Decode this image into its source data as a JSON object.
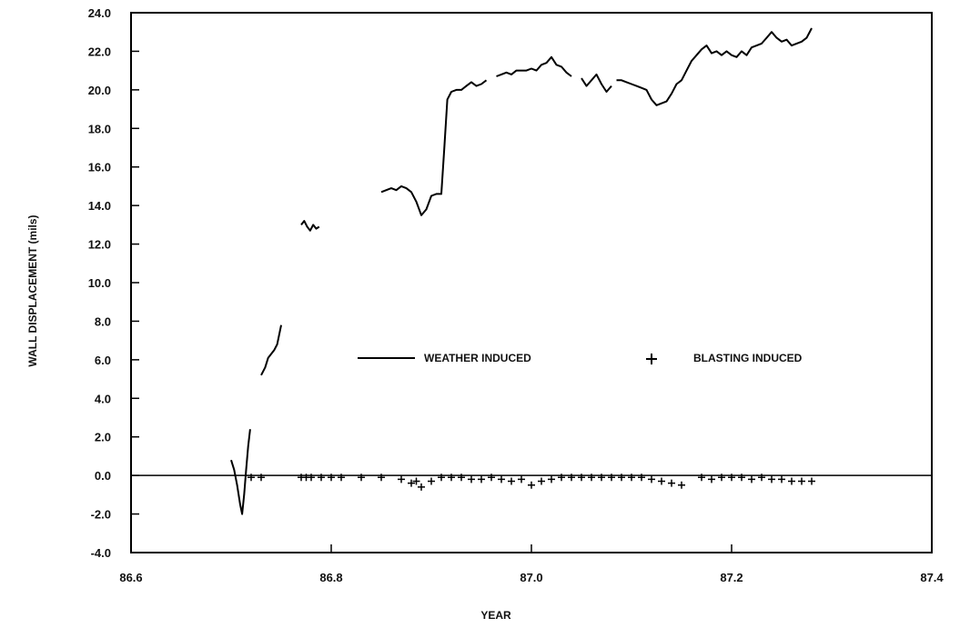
{
  "chart_data": {
    "type": "line",
    "title": "",
    "xlabel": "YEAR",
    "ylabel": "WALL DISPLACEMENT (mils)",
    "xlim": [
      86.6,
      87.4
    ],
    "ylim": [
      -4.0,
      24.0
    ],
    "x_ticks": [
      "86.6",
      "86.8",
      "87.0",
      "87.2",
      "87.4"
    ],
    "y_ticks": [
      "-4.0",
      "-2.0",
      "0.0",
      "2.0",
      "4.0",
      "6.0",
      "8.0",
      "10.0",
      "12.0",
      "14.0",
      "16.0",
      "18.0",
      "20.0",
      "22.0",
      "24.0"
    ],
    "zero_line": 0.0,
    "grid": false,
    "legend_position": "center",
    "series": [
      {
        "name": "WEATHER INDUCED",
        "marker": "line",
        "segments": [
          [
            [
              86.7,
              0.8
            ],
            [
              86.703,
              0.3
            ],
            [
              86.706,
              -0.5
            ],
            [
              86.709,
              -1.5
            ],
            [
              86.711,
              -2.0
            ],
            [
              86.713,
              -1.0
            ],
            [
              86.715,
              0.3
            ],
            [
              86.717,
              1.5
            ],
            [
              86.719,
              2.4
            ]
          ],
          [
            [
              86.73,
              5.2
            ],
            [
              86.734,
              5.6
            ],
            [
              86.737,
              6.1
            ],
            [
              86.74,
              6.3
            ],
            [
              86.743,
              6.5
            ],
            [
              86.746,
              6.8
            ],
            [
              86.748,
              7.3
            ],
            [
              86.75,
              7.8
            ]
          ],
          [
            [
              86.77,
              13.0
            ],
            [
              86.773,
              13.2
            ],
            [
              86.776,
              12.9
            ],
            [
              86.779,
              12.7
            ],
            [
              86.782,
              13.0
            ],
            [
              86.785,
              12.8
            ],
            [
              86.788,
              12.9
            ]
          ],
          [
            [
              86.85,
              14.7
            ],
            [
              86.855,
              14.8
            ],
            [
              86.86,
              14.9
            ],
            [
              86.865,
              14.8
            ],
            [
              86.87,
              15.0
            ],
            [
              86.875,
              14.9
            ],
            [
              86.88,
              14.7
            ],
            [
              86.885,
              14.2
            ],
            [
              86.89,
              13.5
            ],
            [
              86.895,
              13.8
            ],
            [
              86.9,
              14.5
            ],
            [
              86.905,
              14.6
            ],
            [
              86.91,
              14.6
            ],
            [
              86.913,
              17.0
            ],
            [
              86.916,
              19.5
            ],
            [
              86.92,
              19.9
            ],
            [
              86.925,
              20.0
            ],
            [
              86.93,
              20.0
            ],
            [
              86.935,
              20.2
            ],
            [
              86.94,
              20.4
            ],
            [
              86.945,
              20.2
            ],
            [
              86.95,
              20.3
            ],
            [
              86.955,
              20.5
            ]
          ],
          [
            [
              86.965,
              20.7
            ],
            [
              86.97,
              20.8
            ],
            [
              86.975,
              20.9
            ],
            [
              86.98,
              20.8
            ],
            [
              86.985,
              21.0
            ],
            [
              86.99,
              21.0
            ],
            [
              86.995,
              21.0
            ],
            [
              87.0,
              21.1
            ],
            [
              87.005,
              21.0
            ],
            [
              87.01,
              21.3
            ],
            [
              87.015,
              21.4
            ],
            [
              87.02,
              21.7
            ],
            [
              87.025,
              21.3
            ],
            [
              87.03,
              21.2
            ],
            [
              87.035,
              20.9
            ],
            [
              87.04,
              20.7
            ]
          ],
          [
            [
              87.05,
              20.6
            ],
            [
              87.055,
              20.2
            ],
            [
              87.06,
              20.5
            ],
            [
              87.065,
              20.8
            ],
            [
              87.07,
              20.3
            ],
            [
              87.075,
              19.9
            ],
            [
              87.08,
              20.2
            ]
          ],
          [
            [
              87.085,
              20.5
            ],
            [
              87.09,
              20.5
            ],
            [
              87.095,
              20.4
            ],
            [
              87.1,
              20.3
            ],
            [
              87.105,
              20.2
            ],
            [
              87.11,
              20.1
            ],
            [
              87.115,
              20.0
            ],
            [
              87.12,
              19.5
            ],
            [
              87.125,
              19.2
            ],
            [
              87.13,
              19.3
            ],
            [
              87.135,
              19.4
            ],
            [
              87.14,
              19.8
            ],
            [
              87.145,
              20.3
            ],
            [
              87.15,
              20.5
            ],
            [
              87.155,
              21.0
            ],
            [
              87.16,
              21.5
            ],
            [
              87.165,
              21.8
            ],
            [
              87.17,
              22.1
            ],
            [
              87.175,
              22.3
            ],
            [
              87.18,
              21.9
            ],
            [
              87.185,
              22.0
            ],
            [
              87.19,
              21.8
            ],
            [
              87.195,
              22.0
            ],
            [
              87.2,
              21.8
            ],
            [
              87.205,
              21.7
            ],
            [
              87.21,
              22.0
            ],
            [
              87.215,
              21.8
            ],
            [
              87.22,
              22.2
            ],
            [
              87.225,
              22.3
            ],
            [
              87.23,
              22.4
            ],
            [
              87.235,
              22.7
            ],
            [
              87.24,
              23.0
            ],
            [
              87.245,
              22.7
            ],
            [
              87.25,
              22.5
            ],
            [
              87.255,
              22.6
            ],
            [
              87.26,
              22.3
            ],
            [
              87.265,
              22.4
            ],
            [
              87.27,
              22.5
            ],
            [
              87.275,
              22.7
            ],
            [
              87.28,
              23.2
            ]
          ]
        ]
      },
      {
        "name": "BLASTING INDUCED",
        "marker": "plus",
        "x": [
          86.72,
          86.73,
          86.77,
          86.775,
          86.78,
          86.79,
          86.8,
          86.81,
          86.83,
          86.85,
          86.87,
          86.88,
          86.885,
          86.89,
          86.9,
          86.91,
          86.92,
          86.93,
          86.94,
          86.95,
          86.96,
          86.97,
          86.98,
          86.99,
          87.0,
          87.01,
          87.02,
          87.03,
          87.04,
          87.05,
          87.06,
          87.07,
          87.08,
          87.09,
          87.1,
          87.11,
          87.12,
          87.13,
          87.14,
          87.15,
          87.17,
          87.18,
          87.19,
          87.2,
          87.21,
          87.22,
          87.23,
          87.24,
          87.25,
          87.26,
          87.27,
          87.28
        ],
        "y": [
          -0.1,
          -0.1,
          -0.1,
          -0.1,
          -0.1,
          -0.1,
          -0.1,
          -0.1,
          -0.1,
          -0.1,
          -0.2,
          -0.4,
          -0.3,
          -0.6,
          -0.3,
          -0.1,
          -0.1,
          -0.1,
          -0.2,
          -0.2,
          -0.1,
          -0.2,
          -0.3,
          -0.2,
          -0.5,
          -0.3,
          -0.2,
          -0.1,
          -0.1,
          -0.1,
          -0.1,
          -0.1,
          -0.1,
          -0.1,
          -0.1,
          -0.1,
          -0.2,
          -0.3,
          -0.4,
          -0.5,
          -0.1,
          -0.2,
          -0.1,
          -0.1,
          -0.1,
          -0.2,
          -0.1,
          -0.2,
          -0.2,
          -0.3,
          -0.3,
          -0.3
        ]
      }
    ]
  }
}
